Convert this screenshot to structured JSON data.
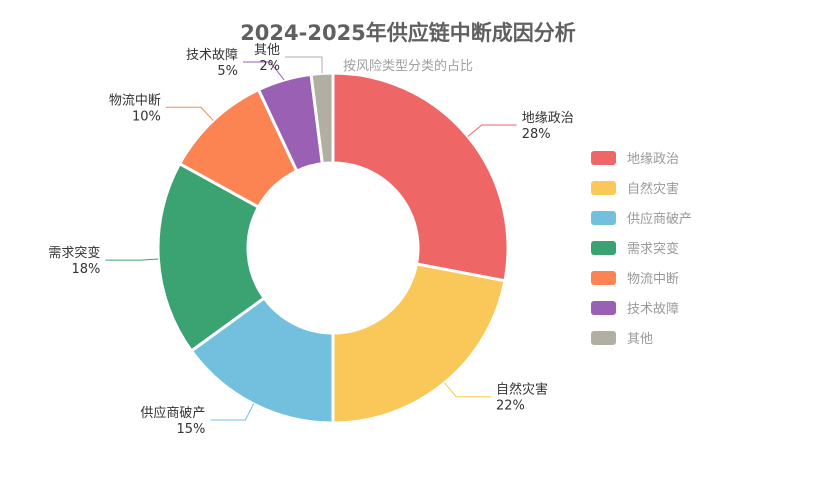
{
  "chart_data": {
    "type": "pie",
    "variant": "donut",
    "title": "2024-2025年供应链中断成因分析",
    "subtitle": "按风险类型分类的占比",
    "legend_position": "right",
    "unit": "%",
    "categories": [
      "地缘政治",
      "自然灾害",
      "供应商破产",
      "需求突变",
      "物流中断",
      "技术故障",
      "其他"
    ],
    "values": [
      28,
      22,
      15,
      18,
      10,
      5,
      2
    ],
    "colors": [
      "#ee6666",
      "#fac858",
      "#73c0de",
      "#3ba272",
      "#fc8452",
      "#9a60b4",
      "#b1aea4"
    ]
  }
}
